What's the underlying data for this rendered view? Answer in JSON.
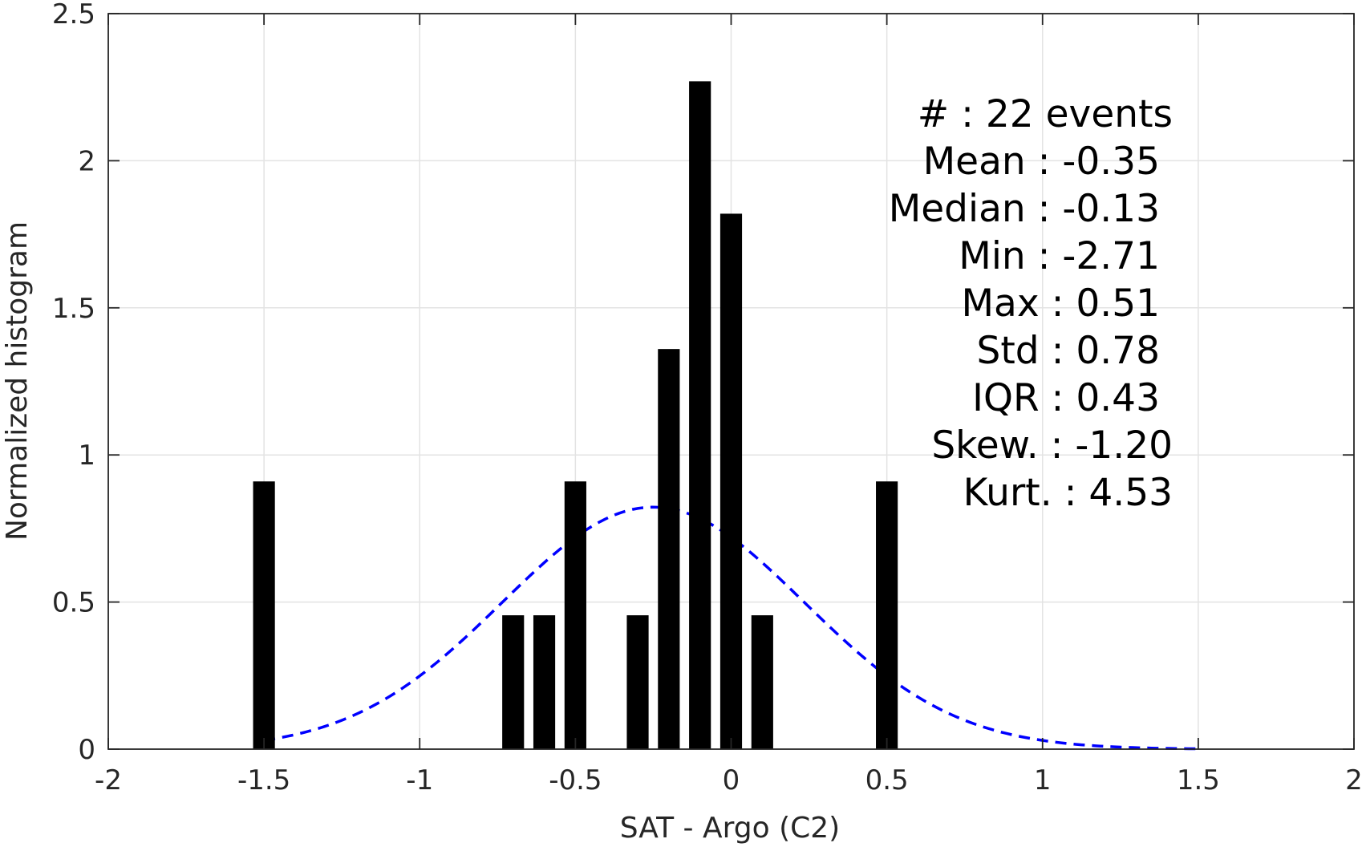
{
  "chart_data": {
    "type": "bar",
    "xlabel": "SAT - Argo (C2)",
    "ylabel": "Normalized histogram",
    "xlim": [
      -2,
      2
    ],
    "ylim": [
      0,
      2.5
    ],
    "grid": true,
    "xticks": [
      -2,
      -1.5,
      -1,
      -0.5,
      0,
      0.5,
      1,
      1.5,
      2
    ],
    "xtick_labels": [
      "-2",
      "-1.5",
      "-1",
      "-0.5",
      "0",
      "0.5",
      "1",
      "1.5",
      "2"
    ],
    "yticks": [
      0,
      0.5,
      1,
      1.5,
      2,
      2.5
    ],
    "ytick_labels": [
      "0",
      "0.5",
      "1",
      "1.5",
      "2",
      "2.5"
    ],
    "bar_width": 0.07,
    "bars": [
      {
        "x": -1.5,
        "value": 0.91
      },
      {
        "x": -0.7,
        "value": 0.455
      },
      {
        "x": -0.6,
        "value": 0.455
      },
      {
        "x": -0.5,
        "value": 0.91
      },
      {
        "x": -0.3,
        "value": 0.455
      },
      {
        "x": -0.2,
        "value": 1.36
      },
      {
        "x": -0.1,
        "value": 2.27
      },
      {
        "x": 0.0,
        "value": 1.82
      },
      {
        "x": 0.1,
        "value": 0.455
      },
      {
        "x": 0.5,
        "value": 0.91
      }
    ],
    "series": [
      {
        "type": "line",
        "style": "dashed",
        "color": "#0000ff",
        "description_of_fit": "normal",
        "mean": -0.25,
        "std": 0.485,
        "x_range": [
          -1.5,
          1.5
        ]
      }
    ],
    "bar_color": "#000000",
    "annotation_lines": [
      "#  : 22 events",
      "Mean : -0.35",
      "Median : -0.13",
      "Min : -2.71",
      "Max : 0.51",
      "Std : 0.78",
      "IQR : 0.43",
      "Skew. : -1.20",
      "Kurt. : 4.53"
    ]
  }
}
